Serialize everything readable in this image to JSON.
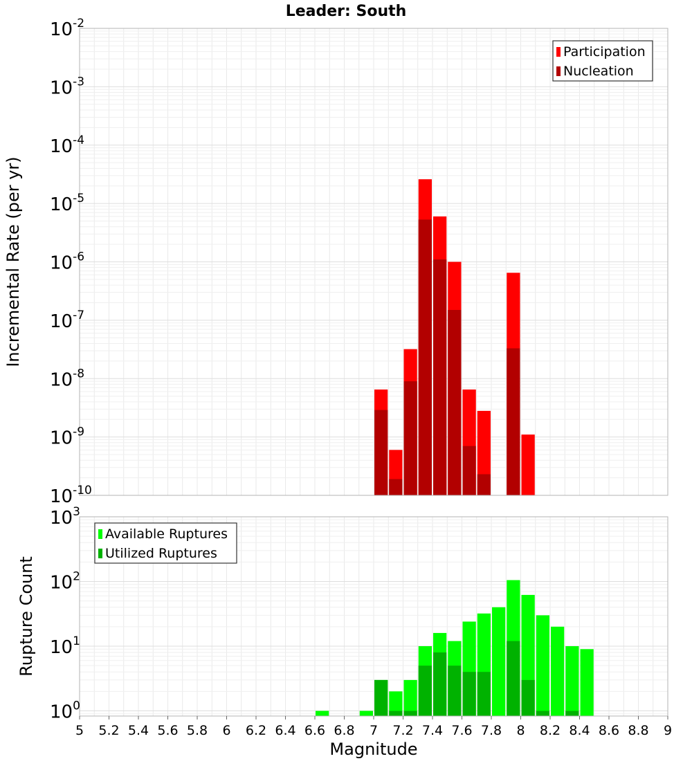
{
  "chart_data": [
    {
      "type": "bar",
      "title": "Leader: South",
      "ylabel": "Incremental Rate (per yr)",
      "xlim": [
        5,
        9
      ],
      "ylim_exponent": [
        -10,
        -2
      ],
      "y_scale": "log",
      "bin_width": 0.1,
      "legend_position": "top-right",
      "y_tick_labels": [
        {
          "base": "10",
          "exp": "-10"
        },
        {
          "base": "10",
          "exp": "-9"
        },
        {
          "base": "10",
          "exp": "-8"
        },
        {
          "base": "10",
          "exp": "-7"
        },
        {
          "base": "10",
          "exp": "-6"
        },
        {
          "base": "10",
          "exp": "-5"
        },
        {
          "base": "10",
          "exp": "-4"
        },
        {
          "base": "10",
          "exp": "-3"
        },
        {
          "base": "10",
          "exp": "-2"
        }
      ],
      "series": [
        {
          "name": "Participation",
          "color": "#ff0000",
          "x": [
            7.05,
            7.15,
            7.25,
            7.35,
            7.45,
            7.55,
            7.65,
            7.75,
            7.95,
            8.05
          ],
          "values": [
            6.5e-09,
            6e-10,
            3.2e-08,
            2.6e-05,
            6e-06,
            1e-06,
            6.5e-09,
            2.8e-09,
            6.5e-07,
            1.1e-09
          ]
        },
        {
          "name": "Nucleation",
          "color": "#b20000",
          "x": [
            7.05,
            7.15,
            7.25,
            7.35,
            7.45,
            7.55,
            7.65,
            7.75,
            7.95
          ],
          "values": [
            2.9e-09,
            1.9e-10,
            9e-09,
            5.3e-06,
            1.1e-06,
            1.5e-07,
            7e-10,
            2.3e-10,
            3.3e-08
          ]
        }
      ]
    },
    {
      "type": "bar",
      "xlabel": "Magnitude",
      "ylabel": "Rupture Count",
      "xlim": [
        5,
        9
      ],
      "ylim_exponent": [
        -0.08,
        3
      ],
      "y_scale": "log",
      "bin_width": 0.1,
      "legend_position": "top-left",
      "x_tick_labels": [
        "5",
        "5.2",
        "5.4",
        "5.6",
        "5.8",
        "6",
        "6.2",
        "6.4",
        "6.6",
        "6.8",
        "7",
        "7.2",
        "7.4",
        "7.6",
        "7.8",
        "8",
        "8.2",
        "8.4",
        "8.6",
        "8.8",
        "9"
      ],
      "y_tick_labels": [
        {
          "base": "10",
          "exp": "0"
        },
        {
          "base": "10",
          "exp": "1"
        },
        {
          "base": "10",
          "exp": "2"
        },
        {
          "base": "10",
          "exp": "3"
        }
      ],
      "series": [
        {
          "name": "Available Ruptures",
          "color": "#00ff00",
          "x": [
            6.65,
            6.95,
            7.05,
            7.15,
            7.25,
            7.35,
            7.45,
            7.55,
            7.65,
            7.75,
            7.85,
            7.95,
            8.05,
            8.15,
            8.25,
            8.35,
            8.45
          ],
          "values": [
            1,
            1,
            3,
            2,
            3,
            10,
            16,
            12,
            24,
            32,
            40,
            105,
            62,
            30,
            20,
            10,
            9
          ]
        },
        {
          "name": "Utilized Ruptures",
          "color": "#00b200",
          "x": [
            7.05,
            7.15,
            7.25,
            7.35,
            7.45,
            7.55,
            7.65,
            7.75,
            7.95,
            8.05,
            8.15,
            8.35
          ],
          "values": [
            3,
            1,
            1,
            5,
            8,
            5,
            4,
            4,
            12,
            3,
            1,
            1
          ]
        }
      ]
    }
  ]
}
